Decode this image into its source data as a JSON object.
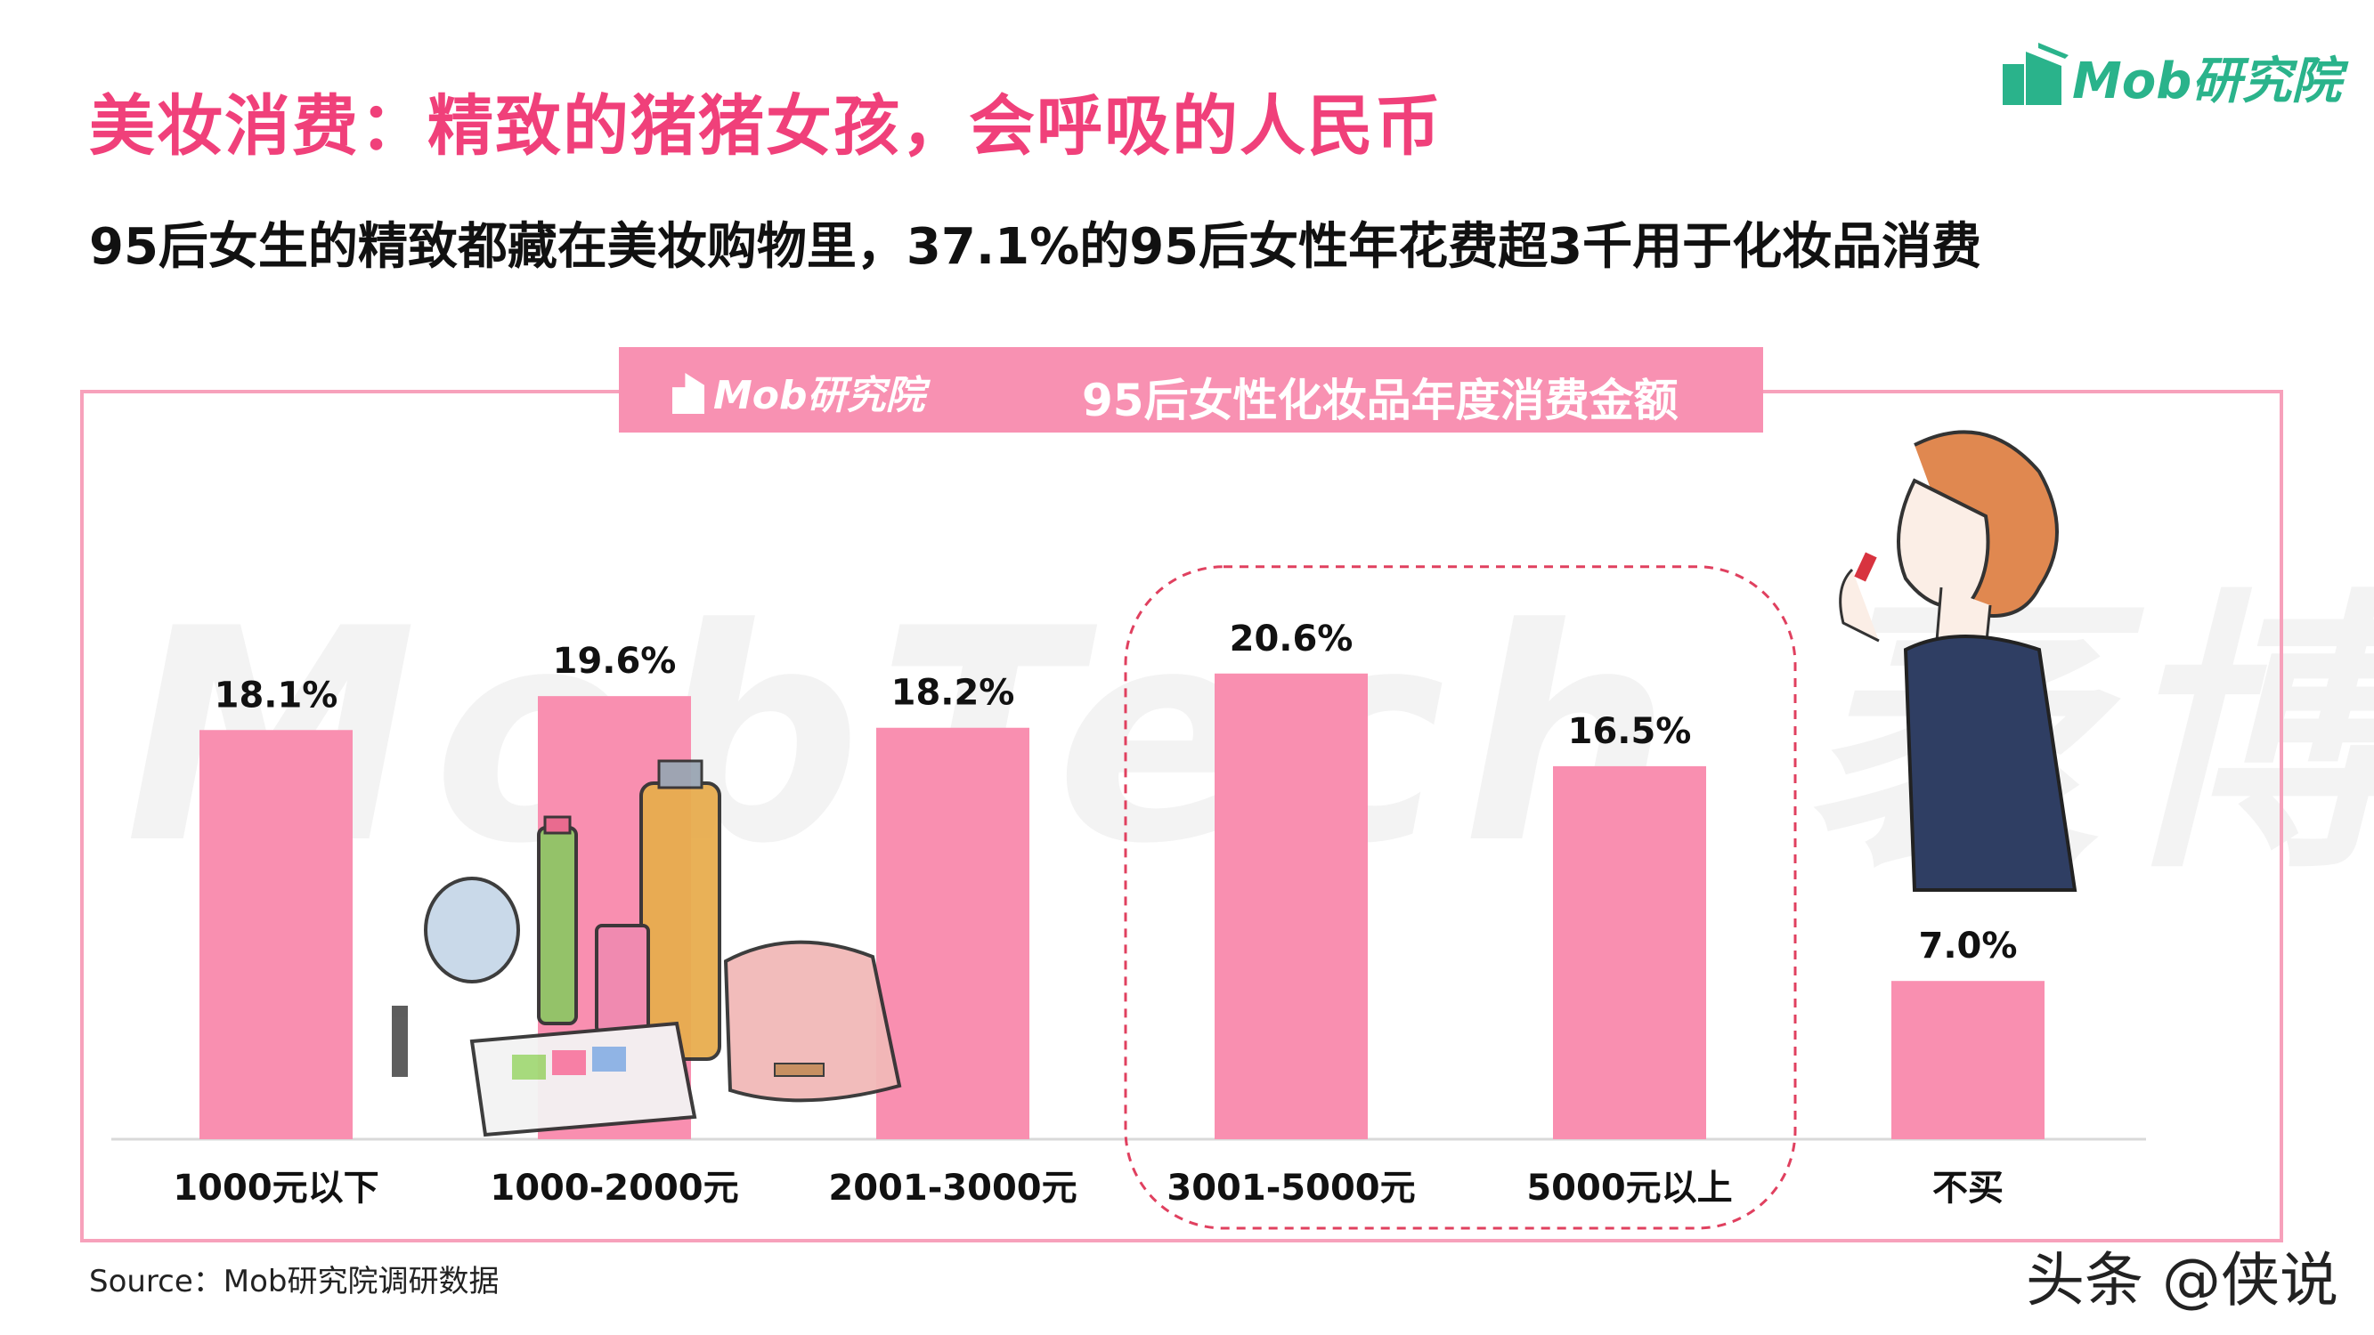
{
  "header": {
    "title": "美妆消费：精致的猪猪女孩，会呼吸的人民币",
    "subtitle": "95后女生的精致都藏在美妆购物里，37.1%的95后女性年花费超3千用于化妆品消费"
  },
  "logo": {
    "text": "Mob研究院"
  },
  "banner": {
    "logo_text": "Mob研究院",
    "title": "95后女性化妆品年度消费金额"
  },
  "background_watermark": "MobTech 袤博",
  "footer": {
    "source": "Source：Mob研究院调研数据"
  },
  "watermark": "头条 @侠说",
  "colors": {
    "accent": "#f0407a",
    "bar": "#f98fb0",
    "frame": "#f7a1bb",
    "logo": "#2ab38b"
  },
  "chart_data": {
    "type": "bar",
    "title": "95后女性化妆品年度消费金额",
    "categories": [
      "1000元以下",
      "1000-2000元",
      "2001-3000元",
      "3001-5000元",
      "5000元以上",
      "不买"
    ],
    "values": [
      18.1,
      19.6,
      18.2,
      20.6,
      16.5,
      7.0
    ],
    "value_labels": [
      "18.1%",
      "19.6%",
      "18.2%",
      "20.6%",
      "16.5%",
      "7.0%"
    ],
    "highlighted_categories": [
      "3001-5000元",
      "5000元以上"
    ],
    "unit": "%",
    "ylim": [
      0,
      24
    ],
    "grid": false,
    "legend": "none",
    "bar_color": "#f98fb0"
  }
}
